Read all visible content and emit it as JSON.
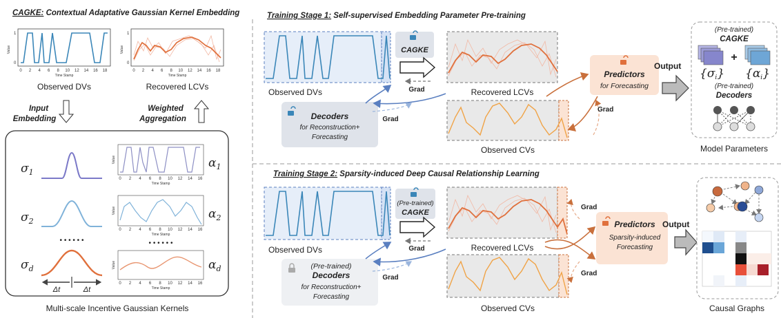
{
  "left": {
    "title_prefix": "CAGKE:",
    "title_rest": " Contextual Adaptative Gaussian Kernel Embedding",
    "observed_dvs": "Observed DVs",
    "recovered_lcvs": "Recovered LCVs",
    "input_embedding_1": "Input",
    "input_embedding_2": "Embedding",
    "weighted_agg_1": "Weighted",
    "weighted_agg_2": "Aggregation",
    "value_label": "Value",
    "time_label": "Time Stamp",
    "xticks": [
      "0",
      "2",
      "4",
      "6",
      "8",
      "10",
      "12",
      "14",
      "16",
      "18"
    ],
    "xticks_small": [
      "0",
      "2",
      "4",
      "6",
      "8",
      "10",
      "12",
      "14",
      "16"
    ],
    "yticks": [
      "0",
      "1"
    ],
    "sigma": "σ",
    "alpha": "α",
    "subs": [
      "1",
      "2",
      "d"
    ],
    "dots": "• • • • • •",
    "delta_t": "Δt",
    "kernels_caption": "Multi-scale Incentive  Gaussian Kernels"
  },
  "stage1": {
    "title_prefix": "Training Stage 1:",
    "title_rest": " Self-supervised Embedding Parameter Pre-training",
    "observed_dvs": "Observed DVs",
    "recovered_lcvs": "Recovered LCVs",
    "observed_cvs": "Observed CVs",
    "cagke": "CAGKE",
    "grad": "Grad",
    "decoders": "Decoders",
    "decoders_sub1": "for Reconstruction+",
    "decoders_sub2": "Forecasting",
    "predictors": "Predictors",
    "predictors_sub": "for Forecasting",
    "output": "Output"
  },
  "params": {
    "pretrained": "(Pre-trained)",
    "cagke": "CAGKE",
    "sigma_set": "{σ",
    "alpha_set": "{α",
    "sub_i": "i",
    "close": "}",
    "plus": "+",
    "pretrained2": "(Pre-trained)",
    "decoders": "Decoders",
    "caption": "Model Parameters"
  },
  "stage2": {
    "title_prefix": "Training Stage 2:",
    "title_rest": " Sparsity-induced Deep Causal Relationship Learning",
    "observed_dvs": "Observed DVs",
    "recovered_lcvs": "Recovered LCVs",
    "observed_cvs": "Observed CVs",
    "cagke_pre": "(Pre-trained)",
    "cagke": "CAGKE",
    "grad": "Grad",
    "decoders_pre": "(Pre-trained)",
    "decoders": "Decoders",
    "decoders_sub1": "for Reconstruction+",
    "decoders_sub2": "Forecasting",
    "predictors": "Predictors",
    "predictors_sub1": "Sparsity-induced",
    "predictors_sub2": "Forecasting",
    "output": "Output",
    "caption": "Causal Graphs"
  },
  "colors": {
    "blue": "#3a86b8",
    "orange": "#e0703c",
    "dark_blue": "#2d5fa8",
    "decoder_bg": "#dfe3ea",
    "predictor_bg": "#fbe3d4",
    "panel_bg": "#e6eef9",
    "gray_panel": "#e9e9e9"
  }
}
